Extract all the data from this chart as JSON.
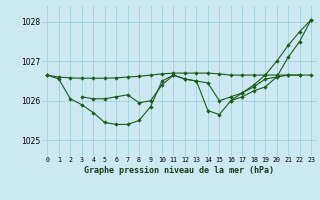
{
  "title": "Graphe pression niveau de la mer (hPa)",
  "xlabel_ticks": [
    "0",
    "1",
    "2",
    "3",
    "4",
    "5",
    "6",
    "7",
    "8",
    "9",
    "10",
    "11",
    "12",
    "13",
    "14",
    "15",
    "16",
    "17",
    "18",
    "19",
    "20",
    "21",
    "22",
    "23"
  ],
  "ylim": [
    1024.6,
    1028.4
  ],
  "yticks": [
    1025,
    1026,
    1027,
    1028
  ],
  "bg_color": "#cce8f0",
  "grid_color": "#99ccd8",
  "line_color": "#1a5c1a",
  "line_smooth": [
    1026.65,
    1026.6,
    1026.58,
    1026.57,
    1026.57,
    1026.57,
    1026.58,
    1026.6,
    1026.62,
    1026.65,
    1026.68,
    1026.7,
    1026.7,
    1026.7,
    1026.7,
    1026.68,
    1026.65,
    1026.65,
    1026.65,
    1026.65,
    1026.65,
    1026.65,
    1026.65,
    1026.65
  ],
  "line_detail": [
    1026.65,
    1026.55,
    1026.05,
    1025.9,
    1025.7,
    1025.45,
    1025.4,
    1025.4,
    1025.5,
    1025.85,
    1026.5,
    1026.65,
    1026.55,
    1026.5,
    1025.75,
    1025.65,
    1026.0,
    1026.1,
    1026.25,
    1026.35,
    1026.6,
    1027.1,
    1027.5,
    1028.05
  ],
  "line_mid": [
    null,
    null,
    null,
    1026.1,
    1026.05,
    1026.05,
    1026.1,
    1026.15,
    1025.95,
    1026.0,
    1026.4,
    1026.65,
    1026.55,
    1026.5,
    1026.45,
    1026.0,
    1026.1,
    1026.2,
    1026.35,
    1026.55,
    1026.6,
    1026.65,
    1026.65,
    null
  ],
  "line_upper": [
    null,
    null,
    null,
    null,
    null,
    null,
    null,
    null,
    null,
    null,
    null,
    null,
    null,
    null,
    null,
    null,
    1026.0,
    1026.2,
    1026.4,
    1026.65,
    1027.0,
    1027.4,
    1027.75,
    1028.05
  ]
}
